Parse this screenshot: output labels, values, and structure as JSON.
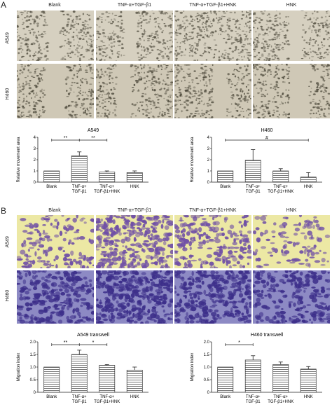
{
  "panel_a": {
    "letter": "A",
    "column_headers": [
      "Blank",
      "TNF-α+TGF-β1",
      "TNF-α+TGF-β1+HNK",
      "HNK"
    ],
    "row_labels": [
      "A549",
      "H460"
    ]
  },
  "panel_b": {
    "letter": "B",
    "column_headers": [
      "Blank",
      "TNF-α+TGF-β1",
      "TNF-α+TGF-β1+HNK",
      "HNK"
    ],
    "row_labels": [
      "A549",
      "H460"
    ]
  },
  "chart_data": [
    {
      "type": "bar",
      "title": "A549",
      "ylabel": "Relative movement area",
      "categories": [
        "Blank",
        "TNF-α+\nTGF-β1",
        "TNF-α+\nTGF-β1+HNK",
        "HNK"
      ],
      "values": [
        1.0,
        2.35,
        0.9,
        0.85
      ],
      "errors": [
        0.0,
        0.35,
        0.1,
        0.15
      ],
      "ylim": [
        0,
        4
      ],
      "yticks": [
        "0",
        "1",
        "2",
        "3",
        "4"
      ],
      "annotations": [
        "**",
        "**"
      ]
    },
    {
      "type": "bar",
      "title": "H460",
      "ylabel": "Relative movement area",
      "categories": [
        "Blank",
        "TNF-α+\nTGF-β1",
        "TNF-α+\nTGF-β1+HNK",
        "HNK"
      ],
      "values": [
        1.0,
        1.95,
        1.0,
        0.45
      ],
      "errors": [
        0.0,
        0.95,
        0.2,
        0.4
      ],
      "ylim": [
        0,
        4
      ],
      "yticks": [
        "0",
        "1",
        "2",
        "3",
        "4"
      ],
      "annotations": [
        "#"
      ]
    },
    {
      "type": "bar",
      "title": "A549 transwell",
      "ylabel": "Migration index",
      "categories": [
        "Blank",
        "TNF-α+\nTGF-β1",
        "TNF-α+\nTGF-β1+HNK",
        "HNK"
      ],
      "values": [
        1.0,
        1.5,
        1.07,
        0.88
      ],
      "errors": [
        0.0,
        0.17,
        0.03,
        0.12
      ],
      "ylim": [
        0,
        2.0
      ],
      "yticks": [
        "0",
        "0.5",
        "1.0",
        "1.5",
        "2.0"
      ],
      "annotations": [
        "**",
        "*"
      ]
    },
    {
      "type": "bar",
      "title": "H460 transwell",
      "ylabel": "Migration index",
      "categories": [
        "Blank",
        "TNF-α+\nTGF-β1",
        "TNF-α+\nTGF-β1+HNK",
        "HNK"
      ],
      "values": [
        1.0,
        1.28,
        1.1,
        0.92
      ],
      "errors": [
        0.0,
        0.17,
        0.1,
        0.1
      ],
      "ylim": [
        0,
        2.0
      ],
      "yticks": [
        "0",
        "0.5",
        "1.0",
        "1.5",
        "2.0"
      ],
      "annotations": [
        "*"
      ]
    }
  ]
}
